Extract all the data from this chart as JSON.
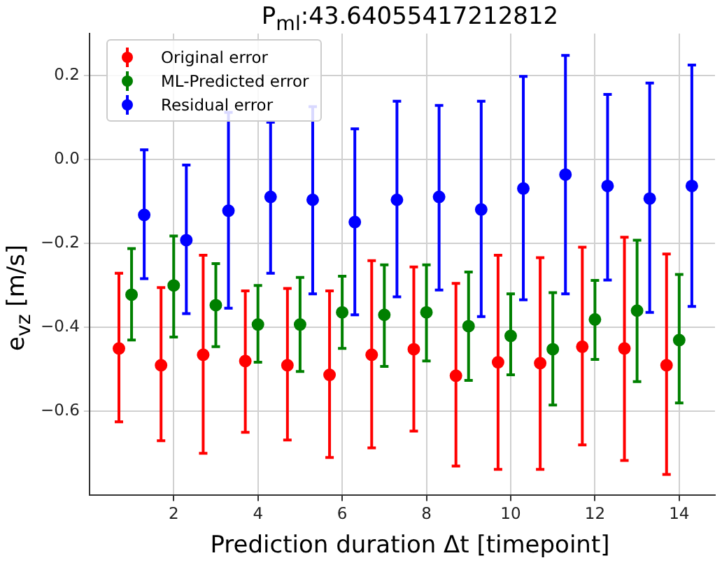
{
  "chart_data": {
    "type": "scatter",
    "title": "P$_{ml}$:43.64055417212812",
    "xlabel": "Prediction duration Δt [timepoint]",
    "ylabel": "e$_{vz}$ [m/s]",
    "xlim": [
      0,
      14.85
    ],
    "ylim": [
      -0.8,
      0.3
    ],
    "xticks": [
      2,
      4,
      6,
      8,
      10,
      12,
      14
    ],
    "yticks": [
      {
        "value": -0.6,
        "label": "−0.6"
      },
      {
        "value": -0.4,
        "label": "−0.4"
      },
      {
        "value": -0.2,
        "label": "−0.2"
      },
      {
        "value": 0,
        "label": "0.0"
      },
      {
        "value": 0.2,
        "label": "0.2"
      }
    ],
    "grid": true,
    "legend": "top left",
    "marker": "circle",
    "series": [
      {
        "name": "Original error",
        "color": "#ff0000",
        "x": [
          0.7,
          1.7,
          2.7,
          3.7,
          4.7,
          5.7,
          6.7,
          7.7,
          8.7,
          9.7,
          10.7,
          11.7,
          12.7,
          13.7
        ],
        "values": [
          -0.45,
          -0.49,
          -0.465,
          -0.48,
          -0.49,
          -0.513,
          -0.465,
          -0.452,
          -0.515,
          -0.483,
          -0.485,
          -0.446,
          -0.45,
          -0.49
        ],
        "errors": [
          [
            -0.625,
            -0.271
          ],
          [
            -0.67,
            -0.305
          ],
          [
            -0.7,
            -0.228
          ],
          [
            -0.65,
            -0.313
          ],
          [
            -0.668,
            -0.307
          ],
          [
            -0.71,
            -0.313
          ],
          [
            -0.687,
            -0.241
          ],
          [
            -0.647,
            -0.256
          ],
          [
            -0.73,
            -0.295
          ],
          [
            -0.738,
            -0.228
          ],
          [
            -0.738,
            -0.234
          ],
          [
            -0.68,
            -0.209
          ],
          [
            -0.717,
            -0.185
          ],
          [
            -0.75,
            -0.225
          ]
        ]
      },
      {
        "name": "ML-Predicted error",
        "color": "#008000",
        "x": [
          1,
          2,
          3,
          4,
          5,
          6,
          7,
          8,
          9,
          10,
          11,
          12,
          13,
          14
        ],
        "values": [
          -0.322,
          -0.3,
          -0.347,
          -0.393,
          -0.393,
          -0.364,
          -0.37,
          -0.364,
          -0.397,
          -0.42,
          -0.452,
          -0.381,
          -0.36,
          -0.43
        ],
        "errors": [
          [
            -0.43,
            -0.212
          ],
          [
            -0.423,
            -0.182
          ],
          [
            -0.446,
            -0.248
          ],
          [
            -0.483,
            -0.3
          ],
          [
            -0.505,
            -0.281
          ],
          [
            -0.45,
            -0.278
          ],
          [
            -0.493,
            -0.251
          ],
          [
            -0.48,
            -0.251
          ],
          [
            -0.526,
            -0.268
          ],
          [
            -0.513,
            -0.32
          ],
          [
            -0.585,
            -0.317
          ],
          [
            -0.476,
            -0.288
          ],
          [
            -0.529,
            -0.192
          ],
          [
            -0.58,
            -0.274
          ]
        ]
      },
      {
        "name": "Residual error",
        "color": "#0000ff",
        "x": [
          1.3,
          2.3,
          3.3,
          4.3,
          5.3,
          6.3,
          7.3,
          8.3,
          9.3,
          10.3,
          11.3,
          12.3,
          13.3,
          14.3
        ],
        "values": [
          -0.132,
          -0.192,
          -0.122,
          -0.089,
          -0.096,
          -0.149,
          -0.096,
          -0.089,
          -0.119,
          -0.069,
          -0.036,
          -0.063,
          -0.093,
          -0.063
        ],
        "errors": [
          [
            -0.284,
            0.023
          ],
          [
            -0.367,
            -0.013
          ],
          [
            -0.354,
            0.112
          ],
          [
            -0.271,
            0.089
          ],
          [
            -0.32,
            0.126
          ],
          [
            -0.37,
            0.073
          ],
          [
            -0.327,
            0.139
          ],
          [
            -0.311,
            0.129
          ],
          [
            -0.374,
            0.139
          ],
          [
            -0.334,
            0.198
          ],
          [
            -0.32,
            0.248
          ],
          [
            -0.287,
            0.155
          ],
          [
            -0.364,
            0.182
          ],
          [
            -0.35,
            0.225
          ]
        ]
      }
    ]
  }
}
